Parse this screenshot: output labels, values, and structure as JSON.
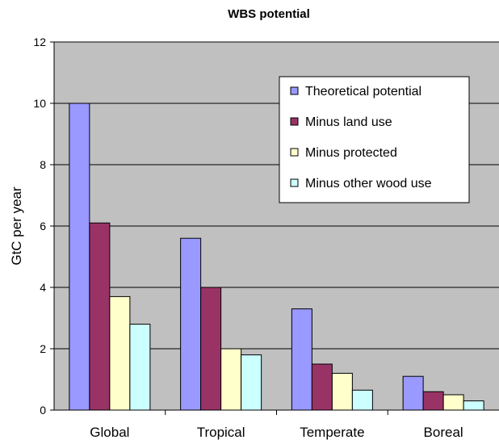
{
  "chart_data": {
    "type": "bar",
    "title": "WBS potential",
    "xlabel": "",
    "ylabel": "GtC per year",
    "ylim": [
      0,
      12
    ],
    "yticks": [
      0,
      2,
      4,
      6,
      8,
      10,
      12
    ],
    "grid": true,
    "legend_position": "top-right",
    "categories": [
      "Global",
      "Tropical",
      "Temperate",
      "Boreal"
    ],
    "series": [
      {
        "name": "Theoretical potential",
        "color": "#9999ff",
        "values": [
          10.0,
          5.6,
          3.3,
          1.1
        ]
      },
      {
        "name": "Minus land use",
        "color": "#993366",
        "values": [
          6.1,
          4.0,
          1.5,
          0.6
        ]
      },
      {
        "name": "Minus protected",
        "color": "#ffffcc",
        "values": [
          3.7,
          2.0,
          1.2,
          0.5
        ]
      },
      {
        "name": "Minus other wood use",
        "color": "#ccffff",
        "values": [
          2.8,
          1.8,
          0.65,
          0.3
        ]
      }
    ],
    "plot_background": "#c0c0c0"
  }
}
